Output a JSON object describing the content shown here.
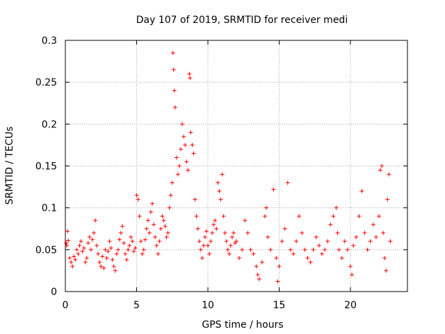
{
  "chart_data": {
    "type": "scatter",
    "title": "Day 107 of 2019, SRMTID for receiver medi",
    "xlabel": "GPS time / hours",
    "ylabel": "SRMTID / TECUs",
    "xlim": [
      0,
      24
    ],
    "ylim": [
      0,
      0.3
    ],
    "xticks": [
      0,
      5,
      10,
      15,
      20
    ],
    "yticks": [
      0,
      0.05,
      0.1,
      0.15,
      0.2,
      0.25,
      0.3
    ],
    "xtick_labels": [
      "0",
      "5",
      "10",
      "15",
      "20"
    ],
    "ytick_labels": [
      "0",
      "0.05",
      "0.1",
      "0.15",
      "0.2",
      "0.25",
      "0.3"
    ],
    "grid": true,
    "marker": "+",
    "color": "#ff0000",
    "series": [
      {
        "name": "SRMTID",
        "points": [
          [
            0.05,
            0.058
          ],
          [
            0.1,
            0.055
          ],
          [
            0.15,
            0.072
          ],
          [
            0.2,
            0.061
          ],
          [
            0.3,
            0.04
          ],
          [
            0.4,
            0.035
          ],
          [
            0.5,
            0.03
          ],
          [
            0.6,
            0.042
          ],
          [
            0.7,
            0.038
          ],
          [
            0.8,
            0.05
          ],
          [
            0.9,
            0.045
          ],
          [
            1.0,
            0.055
          ],
          [
            1.1,
            0.06
          ],
          [
            1.2,
            0.048
          ],
          [
            1.3,
            0.052
          ],
          [
            1.4,
            0.035
          ],
          [
            1.5,
            0.04
          ],
          [
            1.6,
            0.058
          ],
          [
            1.7,
            0.065
          ],
          [
            1.8,
            0.05
          ],
          [
            1.9,
            0.062
          ],
          [
            2.0,
            0.07
          ],
          [
            2.1,
            0.085
          ],
          [
            2.2,
            0.055
          ],
          [
            2.3,
            0.045
          ],
          [
            2.4,
            0.035
          ],
          [
            2.5,
            0.03
          ],
          [
            2.6,
            0.042
          ],
          [
            2.7,
            0.028
          ],
          [
            2.8,
            0.05
          ],
          [
            2.9,
            0.04
          ],
          [
            3.0,
            0.048
          ],
          [
            3.1,
            0.06
          ],
          [
            3.2,
            0.052
          ],
          [
            3.3,
            0.038
          ],
          [
            3.4,
            0.03
          ],
          [
            3.5,
            0.025
          ],
          [
            3.6,
            0.045
          ],
          [
            3.7,
            0.05
          ],
          [
            3.8,
            0.062
          ],
          [
            3.9,
            0.07
          ],
          [
            4.0,
            0.078
          ],
          [
            4.1,
            0.058
          ],
          [
            4.2,
            0.045
          ],
          [
            4.3,
            0.038
          ],
          [
            4.4,
            0.05
          ],
          [
            4.5,
            0.055
          ],
          [
            4.6,
            0.065
          ],
          [
            4.7,
            0.06
          ],
          [
            4.8,
            0.048
          ],
          [
            4.9,
            0.052
          ],
          [
            5.0,
            0.115
          ],
          [
            5.1,
            0.11
          ],
          [
            5.2,
            0.09
          ],
          [
            5.3,
            0.06
          ],
          [
            5.4,
            0.045
          ],
          [
            5.5,
            0.05
          ],
          [
            5.6,
            0.062
          ],
          [
            5.7,
            0.075
          ],
          [
            5.8,
            0.085
          ],
          [
            5.9,
            0.07
          ],
          [
            6.0,
            0.095
          ],
          [
            6.1,
            0.105
          ],
          [
            6.2,
            0.08
          ],
          [
            6.3,
            0.065
          ],
          [
            6.4,
            0.055
          ],
          [
            6.5,
            0.045
          ],
          [
            6.6,
            0.06
          ],
          [
            6.7,
            0.075
          ],
          [
            6.8,
            0.09
          ],
          [
            6.9,
            0.085
          ],
          [
            7.0,
            0.078
          ],
          [
            7.1,
            0.065
          ],
          [
            7.2,
            0.07
          ],
          [
            7.3,
            0.1
          ],
          [
            7.4,
            0.115
          ],
          [
            7.5,
            0.13
          ],
          [
            7.55,
            0.285
          ],
          [
            7.6,
            0.265
          ],
          [
            7.65,
            0.24
          ],
          [
            7.7,
            0.22
          ],
          [
            7.8,
            0.16
          ],
          [
            7.9,
            0.14
          ],
          [
            8.0,
            0.15
          ],
          [
            8.1,
            0.17
          ],
          [
            8.2,
            0.2
          ],
          [
            8.3,
            0.185
          ],
          [
            8.4,
            0.175
          ],
          [
            8.5,
            0.155
          ],
          [
            8.6,
            0.145
          ],
          [
            8.7,
            0.26
          ],
          [
            8.75,
            0.255
          ],
          [
            8.8,
            0.19
          ],
          [
            8.9,
            0.175
          ],
          [
            9.0,
            0.165
          ],
          [
            9.1,
            0.11
          ],
          [
            9.2,
            0.09
          ],
          [
            9.3,
            0.075
          ],
          [
            9.4,
            0.06
          ],
          [
            9.5,
            0.05
          ],
          [
            9.6,
            0.04
          ],
          [
            9.7,
            0.055
          ],
          [
            9.8,
            0.065
          ],
          [
            9.9,
            0.072
          ],
          [
            10.0,
            0.055
          ],
          [
            10.1,
            0.045
          ],
          [
            10.2,
            0.06
          ],
          [
            10.3,
            0.07
          ],
          [
            10.4,
            0.08
          ],
          [
            10.5,
            0.085
          ],
          [
            10.6,
            0.075
          ],
          [
            10.7,
            0.13
          ],
          [
            10.8,
            0.12
          ],
          [
            10.9,
            0.11
          ],
          [
            11.0,
            0.14
          ],
          [
            11.1,
            0.09
          ],
          [
            11.2,
            0.07
          ],
          [
            11.3,
            0.06
          ],
          [
            11.4,
            0.05
          ],
          [
            11.5,
            0.045
          ],
          [
            11.6,
            0.055
          ],
          [
            11.7,
            0.065
          ],
          [
            11.8,
            0.07
          ],
          [
            11.9,
            0.058
          ],
          [
            12.0,
            0.06
          ],
          [
            12.2,
            0.04
          ],
          [
            12.4,
            0.05
          ],
          [
            12.6,
            0.085
          ],
          [
            12.8,
            0.07
          ],
          [
            13.0,
            0.05
          ],
          [
            13.2,
            0.045
          ],
          [
            13.4,
            0.03
          ],
          [
            13.5,
            0.02
          ],
          [
            13.6,
            0.015
          ],
          [
            13.8,
            0.035
          ],
          [
            14.0,
            0.09
          ],
          [
            14.1,
            0.1
          ],
          [
            14.2,
            0.065
          ],
          [
            14.4,
            0.05
          ],
          [
            14.6,
            0.122
          ],
          [
            14.8,
            0.04
          ],
          [
            14.9,
            0.012
          ],
          [
            15.0,
            0.03
          ],
          [
            15.2,
            0.06
          ],
          [
            15.4,
            0.075
          ],
          [
            15.6,
            0.13
          ],
          [
            15.8,
            0.05
          ],
          [
            16.0,
            0.045
          ],
          [
            16.2,
            0.06
          ],
          [
            16.4,
            0.09
          ],
          [
            16.6,
            0.07
          ],
          [
            16.8,
            0.05
          ],
          [
            17.0,
            0.04
          ],
          [
            17.2,
            0.035
          ],
          [
            17.4,
            0.05
          ],
          [
            17.6,
            0.065
          ],
          [
            17.8,
            0.055
          ],
          [
            18.0,
            0.045
          ],
          [
            18.2,
            0.05
          ],
          [
            18.4,
            0.06
          ],
          [
            18.6,
            0.08
          ],
          [
            18.8,
            0.09
          ],
          [
            19.0,
            0.1
          ],
          [
            19.1,
            0.07
          ],
          [
            19.2,
            0.05
          ],
          [
            19.4,
            0.04
          ],
          [
            19.6,
            0.06
          ],
          [
            19.8,
            0.05
          ],
          [
            20.0,
            0.03
          ],
          [
            20.1,
            0.02
          ],
          [
            20.2,
            0.055
          ],
          [
            20.4,
            0.065
          ],
          [
            20.6,
            0.09
          ],
          [
            20.8,
            0.12
          ],
          [
            21.0,
            0.07
          ],
          [
            21.2,
            0.05
          ],
          [
            21.4,
            0.06
          ],
          [
            21.6,
            0.08
          ],
          [
            21.8,
            0.065
          ],
          [
            22.0,
            0.09
          ],
          [
            22.1,
            0.145
          ],
          [
            22.2,
            0.15
          ],
          [
            22.3,
            0.07
          ],
          [
            22.4,
            0.04
          ],
          [
            22.5,
            0.025
          ],
          [
            22.6,
            0.11
          ],
          [
            22.7,
            0.14
          ],
          [
            22.8,
            0.06
          ]
        ]
      }
    ]
  }
}
